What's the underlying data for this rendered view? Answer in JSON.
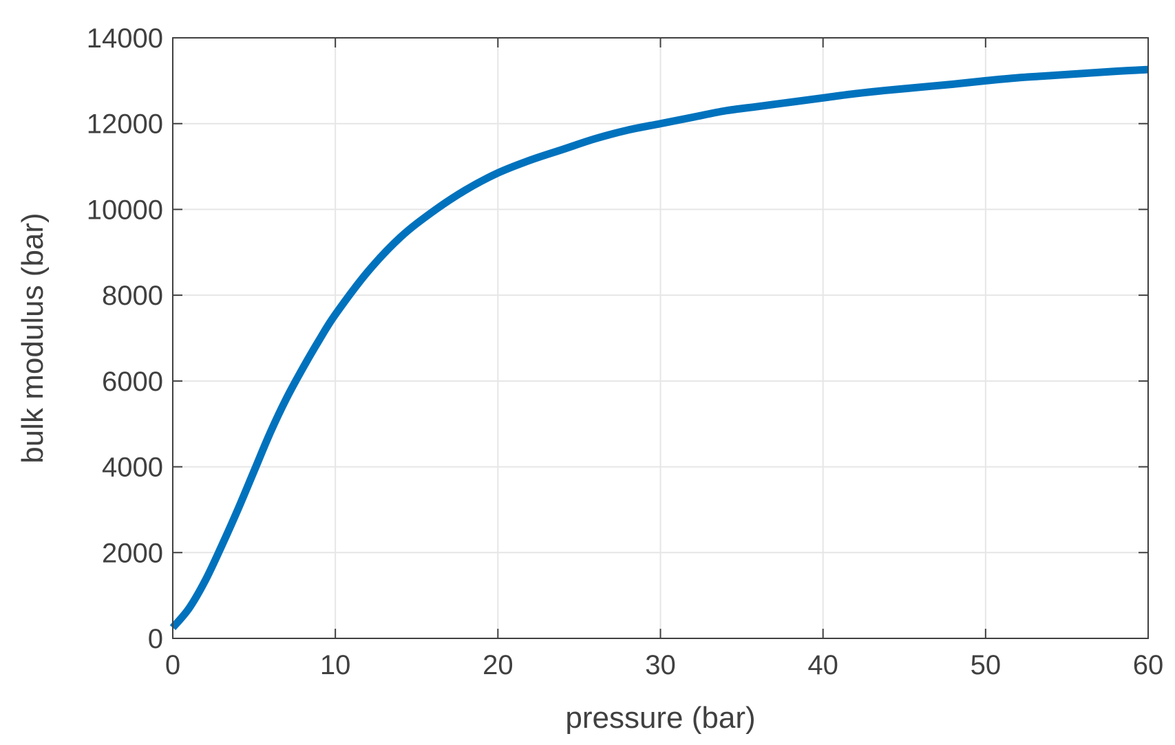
{
  "chart_data": {
    "type": "line",
    "title": "",
    "xlabel": "pressure (bar)",
    "ylabel": "bulk modulus (bar)",
    "xlim": [
      0,
      60
    ],
    "ylim": [
      0,
      14000
    ],
    "xticks": [
      0,
      10,
      20,
      30,
      40,
      50,
      60
    ],
    "yticks": [
      0,
      2000,
      4000,
      6000,
      8000,
      10000,
      12000,
      14000
    ],
    "grid": true,
    "legend": "none",
    "colors": {
      "line": "#0072BD",
      "axes": "#404040",
      "grid": "#e6e6e6",
      "background": "#ffffff"
    },
    "series": [
      {
        "x": [
          0,
          1,
          2,
          3,
          4,
          5,
          6,
          7,
          8,
          9,
          10,
          12,
          14,
          16,
          18,
          20,
          22,
          24,
          26,
          28,
          30,
          32,
          34,
          36,
          38,
          40,
          42,
          44,
          46,
          48,
          50,
          52,
          54,
          56,
          58,
          60
        ],
        "values": [
          250,
          700,
          1350,
          2150,
          3000,
          3900,
          4800,
          5600,
          6300,
          6950,
          7550,
          8550,
          9350,
          9950,
          10450,
          10850,
          11150,
          11400,
          11650,
          11850,
          12000,
          12150,
          12300,
          12400,
          12500,
          12600,
          12700,
          12780,
          12850,
          12920,
          13000,
          13070,
          13120,
          13170,
          13220,
          13260
        ]
      }
    ]
  }
}
